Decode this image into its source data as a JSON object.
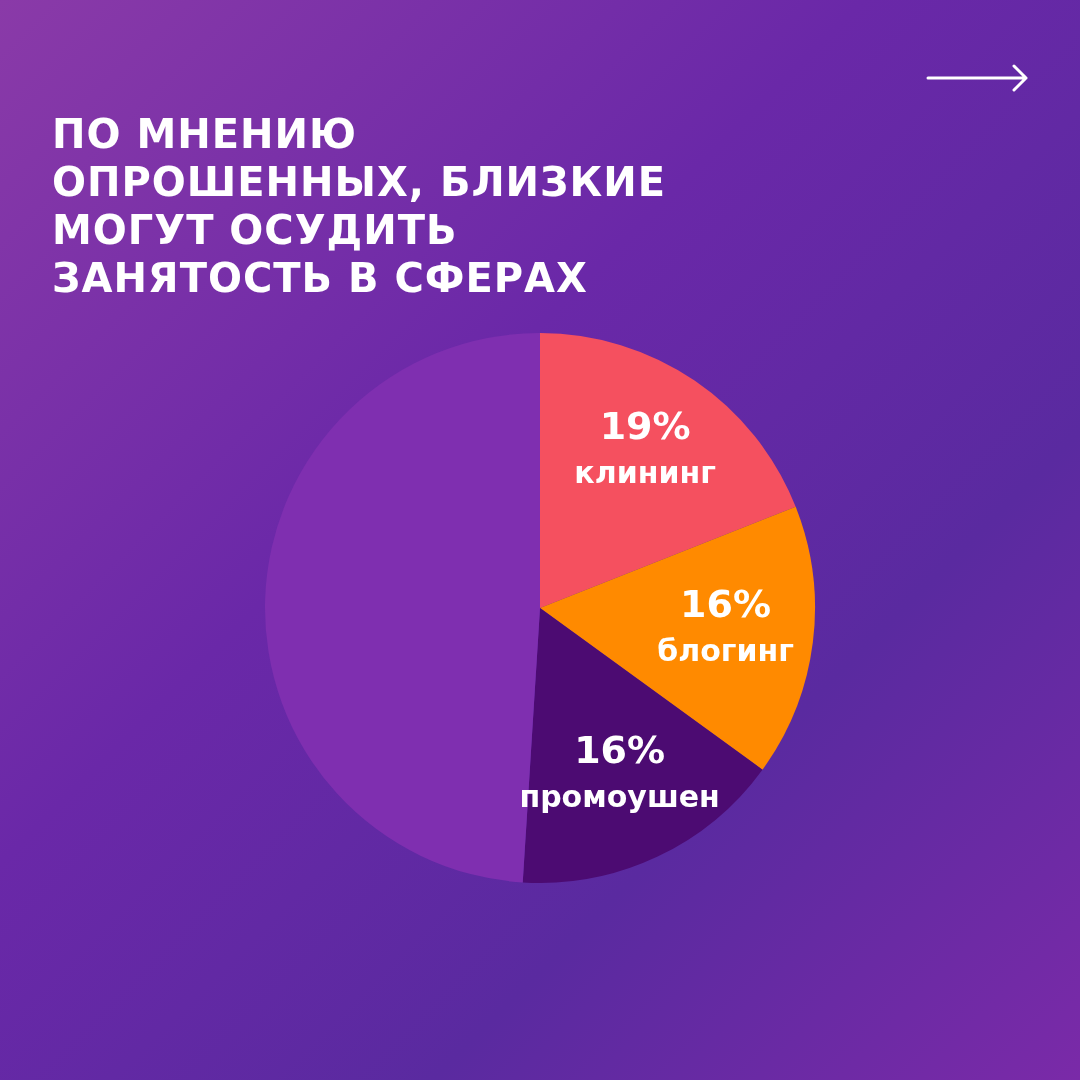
{
  "chart_data": {
    "type": "pie",
    "title": "ПО МНЕНИЮ ОПРОШЕННЫХ, БЛИЗКИЕ МОГУТ ОСУДИТЬ ЗАНЯТОСТЬ В СФЕРАХ",
    "categories": [
      "клининг",
      "блогинг",
      "промоушен",
      null
    ],
    "values": [
      19,
      16,
      16,
      49
    ],
    "value_labels": [
      "19%",
      "16%",
      "16%",
      null
    ],
    "colors": [
      "#f5505f",
      "#ff8a00",
      "#4c0b72",
      "#7f2fb0"
    ],
    "legend": false
  }
}
